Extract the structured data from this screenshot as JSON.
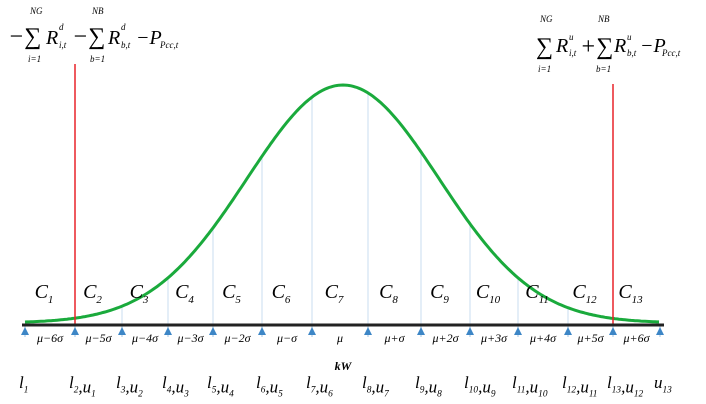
{
  "left_formula": {
    "sum1_sign": "−∑",
    "sum1_top": "NG",
    "sum1_bottom": "i=1",
    "term1": "R",
    "term1_sub": "i,t",
    "term1_sup": "d",
    "sum2_sign": "−∑",
    "sum2_top": "NB",
    "sum2_bottom": "b=1",
    "term2": "R",
    "term2_sub": "b,t",
    "term2_sup": "d",
    "term3": "−P",
    "term3_sub": "Pcc,t"
  },
  "right_formula": {
    "sum1_sign": "∑",
    "sum1_top": "NG",
    "sum1_bottom": "i=1",
    "term1": "R",
    "term1_sub": "i,t",
    "term1_sup": "u",
    "sum2_sign": "+∑",
    "sum2_top": "NB",
    "sum2_bottom": "b=1",
    "term2": "R",
    "term2_sub": "b,t",
    "term2_sup": "u",
    "term3": "−P",
    "term3_sub": "Pcc,t"
  },
  "intervals": [
    {
      "t": "C",
      "s": "1"
    },
    {
      "t": "C",
      "s": "2"
    },
    {
      "t": "C",
      "s": "3"
    },
    {
      "t": "C",
      "s": "4"
    },
    {
      "t": "C",
      "s": "5"
    },
    {
      "t": "C",
      "s": "6"
    },
    {
      "t": "C",
      "s": "7"
    },
    {
      "t": "C",
      "s": "8"
    },
    {
      "t": "C",
      "s": "9"
    },
    {
      "t": "C",
      "s": "10"
    },
    {
      "t": "C",
      "s": "11"
    },
    {
      "t": "C",
      "s": "12"
    },
    {
      "t": "C",
      "s": "13"
    }
  ],
  "sigma_labels": [
    "μ−6σ",
    "μ−5σ",
    "μ−4σ",
    "μ−3σ",
    "μ−2σ",
    "μ−σ",
    "μ",
    "μ+σ",
    "μ+2σ",
    "μ+3σ",
    "μ+4σ",
    "μ+5σ",
    "μ+6σ"
  ],
  "axis_label": "kW",
  "boundaries": [
    [
      {
        "t": "l",
        "s": "1"
      }
    ],
    [
      {
        "t": "l",
        "s": "2"
      },
      {
        "t": ",u",
        "s": "1"
      }
    ],
    [
      {
        "t": "l",
        "s": "3"
      },
      {
        "t": ",u",
        "s": "2"
      }
    ],
    [
      {
        "t": "l",
        "s": "4"
      },
      {
        "t": ",u",
        "s": "3"
      }
    ],
    [
      {
        "t": "l",
        "s": "5"
      },
      {
        "t": ",u",
        "s": "4"
      }
    ],
    [
      {
        "t": "l",
        "s": "6"
      },
      {
        "t": ",u",
        "s": "5"
      }
    ],
    [
      {
        "t": "l",
        "s": "7"
      },
      {
        "t": ",u",
        "s": "6"
      }
    ],
    [
      {
        "t": "l",
        "s": "8"
      },
      {
        "t": ",u",
        "s": "7"
      }
    ],
    [
      {
        "t": "l",
        "s": "9"
      },
      {
        "t": ",u",
        "s": "8"
      }
    ],
    [
      {
        "t": "l",
        "s": "10"
      },
      {
        "t": ",u",
        "s": "9"
      }
    ],
    [
      {
        "t": "l",
        "s": "11"
      },
      {
        "t": ",u",
        "s": "10"
      }
    ],
    [
      {
        "t": "l",
        "s": "12"
      },
      {
        "t": ",u",
        "s": "11"
      }
    ],
    [
      {
        "t": "l",
        "s": "13"
      },
      {
        "t": ",u",
        "s": "12"
      }
    ],
    [
      {
        "t": "u",
        "s": "13"
      }
    ]
  ]
}
